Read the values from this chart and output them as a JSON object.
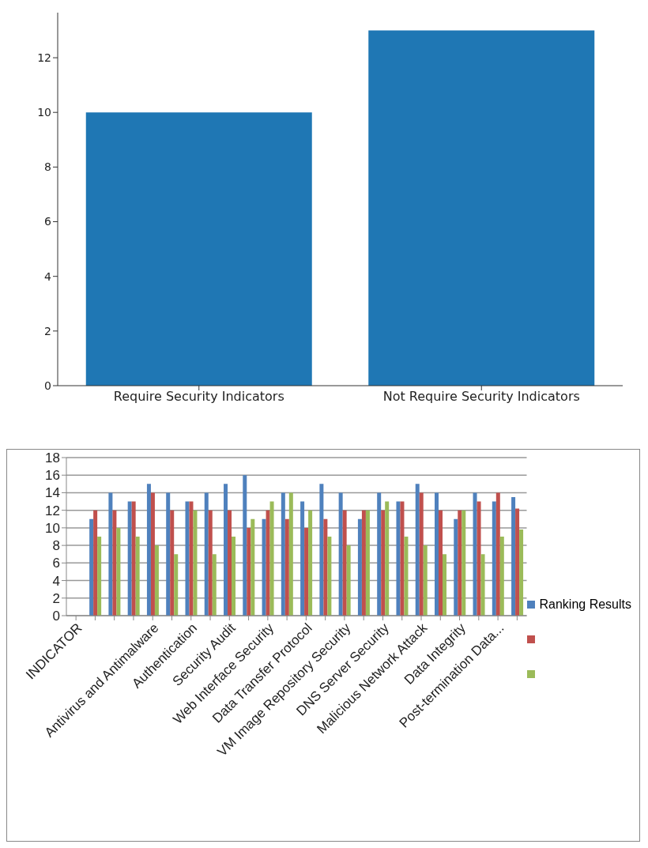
{
  "chart_data": [
    {
      "type": "bar",
      "categories": [
        "Require Security Indicators",
        "Not Require Security Indicators"
      ],
      "values": [
        10,
        13
      ],
      "color": "#1f77b4",
      "ylim": [
        0,
        13.65
      ],
      "yticks": [
        0,
        2,
        4,
        6,
        8,
        10,
        12
      ],
      "grid": false,
      "legend": false
    },
    {
      "type": "bar",
      "categories": [
        "INDICATOR",
        null,
        null,
        null,
        "Antivirus and Antimalware",
        null,
        "Authentication",
        null,
        "Security Audit",
        null,
        "Web Interface Security",
        null,
        "Data Transfer Protocol",
        null,
        "VM Image Repository Security",
        null,
        "DNS Server Security",
        null,
        "Malicious Network Attack",
        null,
        "Data Integrity",
        null,
        "Post-termination Data...",
        null
      ],
      "series": [
        {
          "name": "Ranking Results",
          "color": "#4f81bd",
          "values": [
            null,
            11,
            14,
            13,
            15,
            14,
            13,
            14,
            15,
            16,
            11,
            14,
            13,
            15,
            14,
            11,
            14,
            13,
            15,
            14,
            11,
            14,
            13,
            13.5
          ]
        },
        {
          "color": "#c0504d",
          "values": [
            null,
            12,
            12,
            13,
            14,
            12,
            13,
            12,
            12,
            10,
            12,
            11,
            10,
            11,
            12,
            12,
            12,
            13,
            14,
            12,
            12,
            13,
            14,
            12.2
          ]
        },
        {
          "color": "#9bbb59",
          "values": [
            null,
            9,
            10,
            9,
            8,
            7,
            12,
            7,
            9,
            11,
            13,
            14,
            12,
            9,
            8,
            12,
            13,
            9,
            8,
            7,
            12,
            7,
            9,
            9.8
          ]
        }
      ],
      "ylim": [
        0,
        18
      ],
      "yticks": [
        0,
        2,
        4,
        6,
        8,
        10,
        12,
        14,
        16,
        18
      ],
      "grid": "y",
      "legend": "right"
    }
  ]
}
